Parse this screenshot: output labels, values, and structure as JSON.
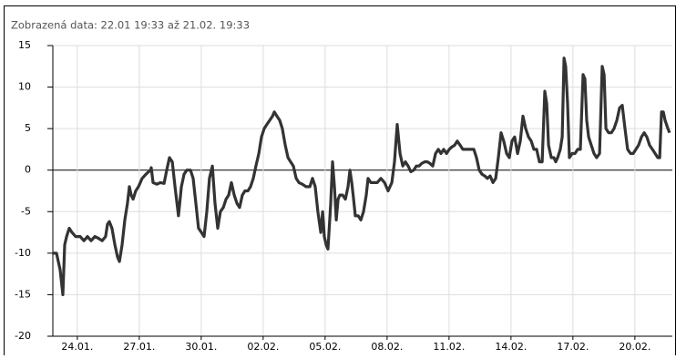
{
  "chart_data": {
    "type": "line",
    "title": "Zobrazená data: 22.01 19:33 až 21.02. 19:33",
    "xlim": [
      22.815,
      52.815
    ],
    "xticks": [
      {
        "value": 24,
        "label": "24.01."
      },
      {
        "value": 27,
        "label": "27.01."
      },
      {
        "value": 30,
        "label": "30.01."
      },
      {
        "value": 33,
        "label": "02.02."
      },
      {
        "value": 36,
        "label": "05.02."
      },
      {
        "value": 39,
        "label": "08.02."
      },
      {
        "value": 42,
        "label": "11.02."
      },
      {
        "value": 45,
        "label": "14.02."
      },
      {
        "value": 48,
        "label": "17.02."
      },
      {
        "value": 51,
        "label": "20.02."
      }
    ],
    "ylim": [
      -20,
      15
    ],
    "yticks": [
      -20,
      -15,
      -10,
      -5,
      0,
      5,
      10,
      15
    ],
    "grid": true,
    "series": [
      {
        "color": "#333333",
        "x": [
          22.82,
          22.99,
          23.17,
          23.3,
          23.39,
          23.48,
          23.61,
          23.74,
          23.92,
          24.14,
          24.32,
          24.49,
          24.67,
          24.85,
          25.02,
          25.2,
          25.37,
          25.46,
          25.55,
          25.68,
          25.82,
          25.95,
          26.04,
          26.17,
          26.3,
          26.43,
          26.52,
          26.61,
          26.7,
          26.83,
          26.96,
          27.14,
          27.32,
          27.54,
          27.58,
          27.67,
          27.85,
          28.02,
          28.2,
          28.33,
          28.46,
          28.6,
          28.73,
          28.9,
          29.04,
          29.17,
          29.3,
          29.48,
          29.61,
          29.74,
          29.87,
          30.01,
          30.14,
          30.27,
          30.4,
          30.54,
          30.67,
          30.8,
          30.93,
          31.07,
          31.2,
          31.33,
          31.46,
          31.6,
          31.73,
          31.86,
          31.99,
          32.12,
          32.26,
          32.39,
          32.52,
          32.65,
          32.79,
          32.92,
          33.05,
          33.18,
          33.32,
          33.45,
          33.54,
          33.67,
          33.8,
          33.93,
          34.07,
          34.2,
          34.33,
          34.46,
          34.6,
          34.73,
          34.9,
          35.08,
          35.26,
          35.39,
          35.52,
          35.65,
          35.79,
          35.88,
          35.96,
          36.05,
          36.14,
          36.27,
          36.36,
          36.45,
          36.54,
          36.63,
          36.71,
          36.85,
          36.98,
          37.11,
          37.2,
          37.29,
          37.38,
          37.46,
          37.6,
          37.73,
          37.86,
          37.99,
          38.08,
          38.21,
          38.35,
          38.52,
          38.7,
          38.88,
          39.05,
          39.23,
          39.36,
          39.49,
          39.63,
          39.76,
          39.89,
          40.02,
          40.15,
          40.29,
          40.42,
          40.55,
          40.68,
          40.82,
          40.95,
          41.08,
          41.21,
          41.35,
          41.48,
          41.61,
          41.74,
          41.88,
          42.01,
          42.14,
          42.27,
          42.4,
          42.54,
          42.67,
          42.8,
          42.93,
          43.07,
          43.2,
          43.33,
          43.46,
          43.6,
          43.73,
          43.86,
          43.99,
          44.13,
          44.26,
          44.39,
          44.52,
          44.65,
          44.79,
          44.92,
          45.05,
          45.18,
          45.32,
          45.45,
          45.58,
          45.71,
          45.85,
          45.98,
          46.11,
          46.24,
          46.38,
          46.51,
          46.64,
          46.73,
          46.82,
          46.95,
          47.08,
          47.17,
          47.26,
          47.39,
          47.48,
          47.57,
          47.65,
          47.74,
          47.83,
          47.96,
          48.1,
          48.23,
          48.36,
          48.49,
          48.58,
          48.67,
          48.76,
          48.89,
          49.02,
          49.15,
          49.29,
          49.42,
          49.51,
          49.6,
          49.73,
          49.86,
          49.99,
          50.13,
          50.26,
          50.39,
          50.52,
          50.65,
          50.79,
          50.92,
          51.05,
          51.18,
          51.32,
          51.45,
          51.58,
          51.71,
          51.85,
          51.98,
          52.11,
          52.2,
          52.29,
          52.38,
          52.46,
          52.6,
          52.68
        ],
        "values": [
          -10,
          -10,
          -12,
          -15,
          -9,
          -8,
          -7,
          -7.5,
          -8,
          -8,
          -8.5,
          -8,
          -8.5,
          -8,
          -8.2,
          -8.5,
          -8,
          -6.5,
          -6.2,
          -7,
          -9,
          -10.5,
          -11,
          -9,
          -6,
          -4,
          -2,
          -3,
          -3.5,
          -2.5,
          -2,
          -1,
          -0.5,
          0,
          0.3,
          -1.5,
          -1.7,
          -1.5,
          -1.6,
          0,
          1.5,
          1,
          -2,
          -5.5,
          -2,
          -0.5,
          0,
          0,
          -1,
          -4,
          -7,
          -7.5,
          -8,
          -5,
          -1,
          0.5,
          -4,
          -7,
          -5,
          -4.5,
          -3.5,
          -3,
          -1.5,
          -3,
          -4,
          -4.5,
          -3,
          -2.5,
          -2.5,
          -2,
          -1,
          0.5,
          2,
          4,
          5,
          5.5,
          6,
          6.5,
          7,
          6.5,
          6,
          5,
          3,
          1.5,
          1,
          0.5,
          -1,
          -1.5,
          -1.7,
          -2,
          -2,
          -1,
          -2,
          -5,
          -7.5,
          -5,
          -8,
          -9,
          -9.5,
          -4,
          1,
          -2,
          -6,
          -3.5,
          -3,
          -3,
          -3.5,
          -2,
          0,
          -1.5,
          -3.5,
          -5.5,
          -5.5,
          -6,
          -5,
          -3,
          -1,
          -1.5,
          -1.5,
          -1.5,
          -1,
          -1.5,
          -2.5,
          -1.5,
          1,
          5.5,
          2,
          0.5,
          1,
          0.5,
          -0.2,
          0,
          0.5,
          0.5,
          0.8,
          1,
          1,
          0.8,
          0.5,
          2,
          2.5,
          2,
          2.5,
          2,
          2.5,
          2.8,
          3,
          3.5,
          3,
          2.5,
          2.5,
          2.5,
          2.5,
          2.5,
          1.5,
          0,
          -0.5,
          -0.7,
          -1,
          -0.7,
          -1.5,
          -1,
          1.5,
          4.5,
          3.5,
          2,
          1.5,
          3.5,
          4,
          2,
          3.5,
          6.5,
          5,
          4,
          3.5,
          2.5,
          2.5,
          1,
          1,
          9.5,
          8,
          3,
          1.5,
          1.5,
          1,
          1.5,
          2.5,
          4,
          13.5,
          12.5,
          8,
          1.5,
          2,
          2,
          2.5,
          2.5,
          11.5,
          11,
          6,
          4,
          3,
          2,
          1.5,
          2,
          12.5,
          11.5,
          5,
          4.5,
          4.5,
          5,
          6,
          7.5,
          7.8,
          5,
          2.5,
          2,
          2,
          2.5,
          3,
          4,
          4.5,
          4,
          3,
          2.5,
          2,
          1.5,
          1.5,
          7,
          7,
          6,
          5,
          4.5
        ]
      }
    ]
  }
}
